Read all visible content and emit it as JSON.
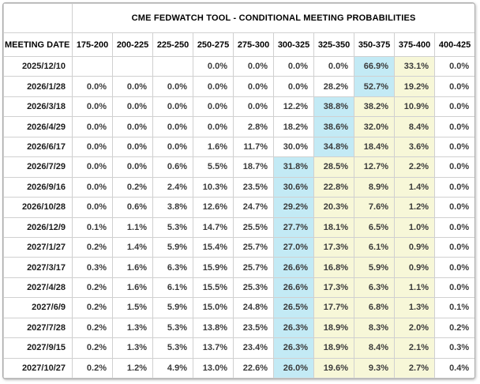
{
  "title": "CME FEDWATCH TOOL - CONDITIONAL MEETING PROBABILITIES",
  "columns": {
    "date_label": "MEETING DATE",
    "rate_ranges": [
      "175-200",
      "200-225",
      "225-250",
      "250-275",
      "275-300",
      "300-325",
      "325-350",
      "350-375",
      "375-400",
      "400-425"
    ]
  },
  "colors": {
    "highlight_blue": "#c3eaf5",
    "highlight_yellow": "#f7f7d8",
    "cell_border": "#d0d0d0"
  },
  "rows": [
    {
      "date": "2025/12/10",
      "values": [
        "",
        "",
        "",
        "0.0%",
        "0.0%",
        "0.0%",
        "0.0%",
        "66.9%",
        "33.1%",
        "0.0%"
      ],
      "highlights": [
        "",
        "",
        "",
        "",
        "",
        "",
        "",
        "b",
        "y",
        ""
      ]
    },
    {
      "date": "2026/1/28",
      "values": [
        "0.0%",
        "0.0%",
        "0.0%",
        "0.0%",
        "0.0%",
        "0.0%",
        "28.2%",
        "52.7%",
        "19.2%",
        "0.0%"
      ],
      "highlights": [
        "",
        "",
        "",
        "",
        "",
        "",
        "",
        "b",
        "y",
        ""
      ]
    },
    {
      "date": "2026/3/18",
      "values": [
        "0.0%",
        "0.0%",
        "0.0%",
        "0.0%",
        "0.0%",
        "12.2%",
        "38.8%",
        "38.2%",
        "10.9%",
        "0.0%"
      ],
      "highlights": [
        "",
        "",
        "",
        "",
        "",
        "",
        "b",
        "y",
        "y",
        ""
      ]
    },
    {
      "date": "2026/4/29",
      "values": [
        "0.0%",
        "0.0%",
        "0.0%",
        "0.0%",
        "2.8%",
        "18.2%",
        "38.6%",
        "32.0%",
        "8.4%",
        "0.0%"
      ],
      "highlights": [
        "",
        "",
        "",
        "",
        "",
        "",
        "b",
        "y",
        "y",
        ""
      ]
    },
    {
      "date": "2026/6/17",
      "values": [
        "0.0%",
        "0.0%",
        "0.0%",
        "1.6%",
        "11.7%",
        "30.0%",
        "34.8%",
        "18.4%",
        "3.6%",
        "0.0%"
      ],
      "highlights": [
        "",
        "",
        "",
        "",
        "",
        "",
        "b",
        "y",
        "y",
        ""
      ]
    },
    {
      "date": "2026/7/29",
      "values": [
        "0.0%",
        "0.0%",
        "0.6%",
        "5.5%",
        "18.7%",
        "31.8%",
        "28.5%",
        "12.7%",
        "2.2%",
        "0.0%"
      ],
      "highlights": [
        "",
        "",
        "",
        "",
        "",
        "b",
        "y",
        "y",
        "y",
        ""
      ]
    },
    {
      "date": "2026/9/16",
      "values": [
        "0.0%",
        "0.2%",
        "2.4%",
        "10.3%",
        "23.5%",
        "30.6%",
        "22.8%",
        "8.9%",
        "1.4%",
        "0.0%"
      ],
      "highlights": [
        "",
        "",
        "",
        "",
        "",
        "b",
        "y",
        "y",
        "y",
        ""
      ]
    },
    {
      "date": "2026/10/28",
      "values": [
        "0.0%",
        "0.6%",
        "3.8%",
        "12.6%",
        "24.7%",
        "29.2%",
        "20.3%",
        "7.6%",
        "1.2%",
        "0.0%"
      ],
      "highlights": [
        "",
        "",
        "",
        "",
        "",
        "b",
        "y",
        "y",
        "y",
        ""
      ]
    },
    {
      "date": "2026/12/9",
      "values": [
        "0.1%",
        "1.1%",
        "5.3%",
        "14.7%",
        "25.5%",
        "27.7%",
        "18.1%",
        "6.5%",
        "1.0%",
        "0.0%"
      ],
      "highlights": [
        "",
        "",
        "",
        "",
        "",
        "b",
        "y",
        "y",
        "y",
        ""
      ]
    },
    {
      "date": "2027/1/27",
      "values": [
        "0.2%",
        "1.4%",
        "5.9%",
        "15.4%",
        "25.7%",
        "27.0%",
        "17.3%",
        "6.1%",
        "0.9%",
        "0.0%"
      ],
      "highlights": [
        "",
        "",
        "",
        "",
        "",
        "b",
        "y",
        "y",
        "y",
        ""
      ]
    },
    {
      "date": "2027/3/17",
      "values": [
        "0.3%",
        "1.6%",
        "6.3%",
        "15.9%",
        "25.7%",
        "26.6%",
        "16.8%",
        "5.9%",
        "0.9%",
        "0.0%"
      ],
      "highlights": [
        "",
        "",
        "",
        "",
        "",
        "b",
        "y",
        "y",
        "y",
        ""
      ]
    },
    {
      "date": "2027/4/28",
      "values": [
        "0.2%",
        "1.6%",
        "6.1%",
        "15.5%",
        "25.3%",
        "26.6%",
        "17.3%",
        "6.3%",
        "1.1%",
        "0.0%"
      ],
      "highlights": [
        "",
        "",
        "",
        "",
        "",
        "b",
        "y",
        "y",
        "y",
        ""
      ]
    },
    {
      "date": "2027/6/9",
      "values": [
        "0.2%",
        "1.5%",
        "5.9%",
        "15.0%",
        "24.8%",
        "26.5%",
        "17.7%",
        "6.8%",
        "1.3%",
        "0.1%"
      ],
      "highlights": [
        "",
        "",
        "",
        "",
        "",
        "b",
        "y",
        "y",
        "y",
        ""
      ]
    },
    {
      "date": "2027/7/28",
      "values": [
        "0.2%",
        "1.3%",
        "5.3%",
        "13.8%",
        "23.5%",
        "26.3%",
        "18.9%",
        "8.3%",
        "2.0%",
        "0.2%"
      ],
      "highlights": [
        "",
        "",
        "",
        "",
        "",
        "b",
        "y",
        "y",
        "y",
        ""
      ]
    },
    {
      "date": "2027/9/15",
      "values": [
        "0.2%",
        "1.3%",
        "5.3%",
        "13.7%",
        "23.4%",
        "26.3%",
        "18.9%",
        "8.4%",
        "2.1%",
        "0.3%"
      ],
      "highlights": [
        "",
        "",
        "",
        "",
        "",
        "b",
        "y",
        "y",
        "y",
        ""
      ]
    },
    {
      "date": "2027/10/27",
      "values": [
        "0.2%",
        "1.2%",
        "4.9%",
        "13.0%",
        "22.6%",
        "26.0%",
        "19.6%",
        "9.3%",
        "2.7%",
        "0.4%"
      ],
      "highlights": [
        "",
        "",
        "",
        "",
        "",
        "b",
        "y",
        "y",
        "y",
        ""
      ]
    }
  ]
}
